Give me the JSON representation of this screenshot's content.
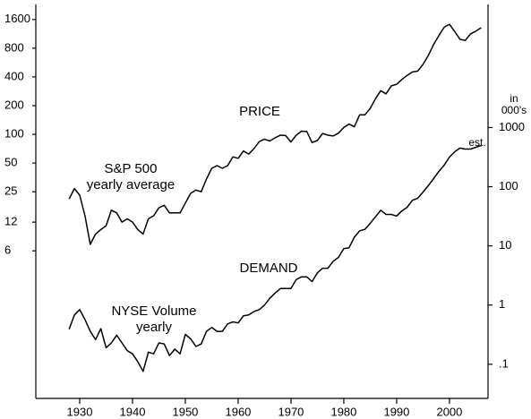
{
  "chart_data": {
    "type": "line",
    "x": [
      1928,
      1929,
      1930,
      1931,
      1932,
      1933,
      1934,
      1935,
      1936,
      1937,
      1938,
      1939,
      1940,
      1941,
      1942,
      1943,
      1944,
      1945,
      1946,
      1947,
      1948,
      1949,
      1950,
      1951,
      1952,
      1953,
      1954,
      1955,
      1956,
      1957,
      1958,
      1959,
      1960,
      1961,
      1962,
      1963,
      1964,
      1965,
      1966,
      1967,
      1968,
      1969,
      1970,
      1971,
      1972,
      1973,
      1974,
      1975,
      1976,
      1977,
      1978,
      1979,
      1980,
      1981,
      1982,
      1983,
      1984,
      1985,
      1986,
      1987,
      1988,
      1989,
      1990,
      1991,
      1992,
      1993,
      1994,
      1995,
      1996,
      1997,
      1998,
      1999,
      2000,
      2001,
      2002,
      2003,
      2004,
      2005,
      2006
    ],
    "series": [
      {
        "name": "S&P 500 yearly average",
        "color": "#000000",
        "axis": "y",
        "values": [
          21,
          27,
          23,
          14,
          7,
          9,
          10,
          11,
          16,
          15,
          12,
          13,
          12,
          10,
          9,
          13,
          14,
          17,
          18,
          15,
          15,
          15,
          19,
          24,
          26,
          25,
          34,
          44,
          47,
          44,
          47,
          58,
          56,
          67,
          62,
          71,
          84,
          89,
          85,
          92,
          98,
          97,
          83,
          98,
          108,
          107,
          82,
          86,
          102,
          98,
          96,
          103,
          118,
          128,
          120,
          160,
          160,
          187,
          236,
          287,
          266,
          322,
          334,
          376,
          415,
          451,
          460,
          542,
          670,
          873,
          1085,
          1327,
          1427,
          1194,
          993,
          965,
          1131,
          1207,
          1310
        ]
      },
      {
        "name": "NYSE Volume yearly",
        "color": "#000000",
        "axis": "y2",
        "values": [
          0.39,
          0.68,
          0.84,
          0.57,
          0.36,
          0.26,
          0.4,
          0.19,
          0.23,
          0.31,
          0.23,
          0.17,
          0.15,
          0.11,
          0.076,
          0.16,
          0.15,
          0.23,
          0.22,
          0.14,
          0.18,
          0.15,
          0.32,
          0.27,
          0.2,
          0.22,
          0.36,
          0.42,
          0.36,
          0.36,
          0.48,
          0.52,
          0.5,
          0.66,
          0.68,
          0.78,
          0.84,
          1.0,
          1.3,
          1.6,
          1.9,
          1.9,
          1.9,
          2.7,
          3.0,
          3.0,
          2.5,
          3.5,
          4.2,
          4.2,
          5.5,
          6.4,
          9.0,
          9.3,
          14,
          18,
          19,
          24,
          31,
          40,
          34,
          34,
          32,
          39,
          45,
          59,
          64,
          81,
          104,
          137,
          181,
          231,
          316,
          390,
          449,
          433,
          433,
          464,
          498
        ]
      }
    ],
    "xlim": [
      1921.7,
      2007.3
    ],
    "xticks": [
      1930,
      1940,
      1950,
      1960,
      1970,
      1980,
      1990,
      2000
    ],
    "ylim": [
      0.17,
      2300
    ],
    "ylog": true,
    "yticks": [
      6,
      12,
      25,
      50,
      100,
      200,
      400,
      800,
      1600
    ],
    "y2lim": [
      0.0265,
      120000
    ],
    "y2log": true,
    "y2ticks": [
      {
        "value": 0.1,
        "label": ".1"
      },
      1,
      10,
      100,
      1000
    ],
    "y2label": [
      "in",
      "000's"
    ],
    "annotations": [
      "PRICE",
      "DEMAND",
      "S&P 500",
      "yearly average",
      "NYSE Volume",
      "yearly",
      "est."
    ]
  }
}
